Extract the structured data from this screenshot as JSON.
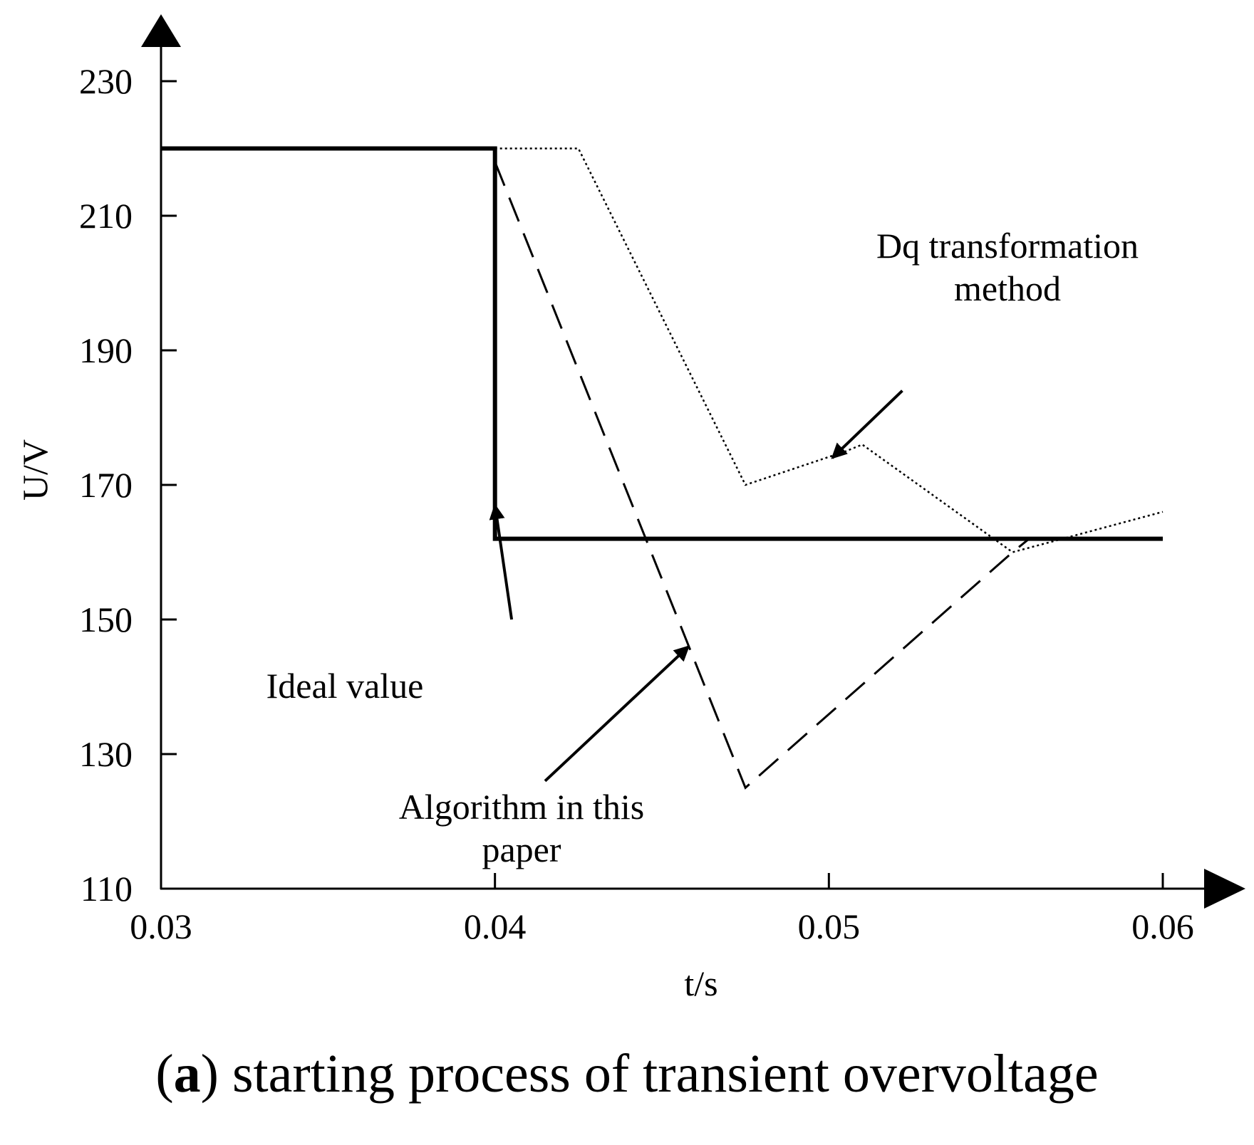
{
  "chart_data": {
    "type": "line",
    "xlabel": "t/s",
    "ylabel": "U/V",
    "xlim": [
      0.03,
      0.06
    ],
    "ylim": [
      110,
      230
    ],
    "x_ticks": [
      "0.03",
      "0.04",
      "0.05",
      "0.06"
    ],
    "y_ticks": [
      "110",
      "130",
      "150",
      "170",
      "190",
      "210",
      "230"
    ],
    "series": [
      {
        "name": "Ideal value",
        "style": "solid-thick",
        "points": [
          [
            0.03,
            220
          ],
          [
            0.04,
            220
          ],
          [
            0.04,
            162
          ],
          [
            0.06,
            162
          ]
        ]
      },
      {
        "name": "Dq transformation method",
        "style": "dotted",
        "points": [
          [
            0.04,
            220
          ],
          [
            0.0425,
            220
          ],
          [
            0.0475,
            170
          ],
          [
            0.0505,
            175
          ],
          [
            0.051,
            176
          ],
          [
            0.0555,
            160
          ],
          [
            0.06,
            166
          ]
        ]
      },
      {
        "name": "Algorithm in this paper",
        "style": "dashed",
        "points": [
          [
            0.04,
            218
          ],
          [
            0.0475,
            125
          ],
          [
            0.0555,
            160
          ],
          [
            0.056,
            162
          ]
        ]
      }
    ],
    "annotations": [
      {
        "name": "ideal",
        "lines": [
          "Ideal value"
        ],
        "arrow_tail": [
          0.0405,
          150
        ],
        "arrow_head": [
          0.04,
          167
        ]
      },
      {
        "name": "dq",
        "lines": [
          "Dq transformation",
          "method"
        ],
        "arrow_tail": [
          0.0522,
          184
        ],
        "arrow_head": [
          0.0501,
          174
        ]
      },
      {
        "name": "algorithm",
        "lines": [
          "Algorithm in this",
          "paper"
        ],
        "arrow_tail": [
          0.0415,
          126
        ],
        "arrow_head": [
          0.0458,
          146
        ]
      }
    ]
  },
  "caption": {
    "letter": "a",
    "text": "starting process of transient overvoltage"
  }
}
